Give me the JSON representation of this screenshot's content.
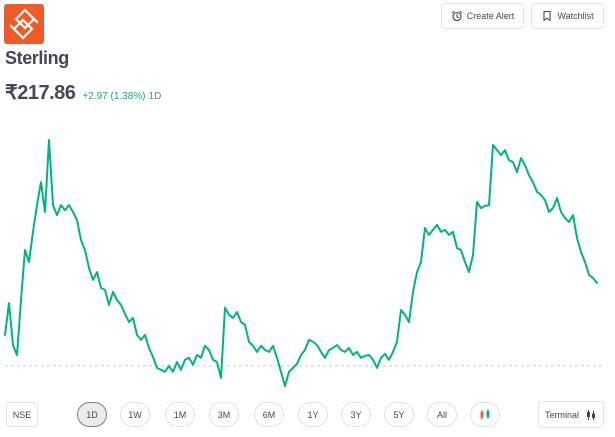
{
  "header": {
    "create_alert": {
      "label": "Create Alert",
      "icon": "alarm-clock-icon"
    },
    "watchlist": {
      "label": "Watchlist",
      "icon": "bookmark-icon"
    },
    "logo_icon": "company-logo-icon"
  },
  "stock": {
    "name": "Sterling",
    "price": "₹217.86",
    "change": "+2.97 (1.38%)",
    "period": "1D"
  },
  "footer": {
    "exchange": "NSE",
    "ranges": [
      {
        "label": "1D",
        "selected": true
      },
      {
        "label": "1W",
        "selected": false
      },
      {
        "label": "1M",
        "selected": false
      },
      {
        "label": "3M",
        "selected": false
      },
      {
        "label": "6M",
        "selected": false
      },
      {
        "label": "1Y",
        "selected": false
      },
      {
        "label": "3Y",
        "selected": false
      },
      {
        "label": "5Y",
        "selected": false
      },
      {
        "label": "All",
        "selected": false
      }
    ],
    "chart_type_icon": "candlestick-icon",
    "terminal": {
      "label": "Terminal",
      "icon": "candlestick-icon"
    }
  },
  "colors": {
    "logo": "#f05a28",
    "positive": "#00b386",
    "text": "#44475b",
    "muted": "#7c7e8c",
    "reference_line": "#c9c9c9",
    "selected_fill": "#ebebeb"
  },
  "chart_data": {
    "type": "line",
    "grid": false,
    "axes_visible": false,
    "legend": "none",
    "baseline": 214.89,
    "values": [
      216.0,
      217.14,
      215.64,
      215.28,
      217.25,
      219.04,
      218.61,
      219.69,
      220.65,
      221.47,
      220.4,
      222.98,
      220.65,
      220.29,
      220.65,
      220.47,
      220.65,
      220.4,
      220.11,
      219.4,
      219.04,
      218.4,
      217.97,
      218.25,
      217.68,
      217.61,
      217.07,
      217.54,
      217.25,
      217.07,
      216.75,
      216.46,
      216.61,
      216.0,
      215.82,
      216.0,
      215.53,
      215.21,
      214.82,
      214.75,
      214.68,
      214.89,
      214.68,
      215.03,
      214.75,
      215.11,
      215.18,
      214.93,
      215.28,
      215.18,
      215.61,
      215.46,
      215.11,
      215.03,
      214.46,
      216.97,
      216.72,
      216.61,
      216.82,
      216.46,
      216.36,
      215.75,
      215.61,
      215.39,
      215.61,
      215.46,
      215.39,
      215.61,
      215.18,
      214.68,
      214.17,
      214.68,
      214.82,
      214.96,
      215.28,
      215.46,
      215.82,
      215.75,
      215.64,
      215.39,
      215.18,
      215.46,
      215.53,
      215.64,
      215.46,
      215.39,
      215.53,
      215.28,
      215.39,
      215.18,
      215.25,
      215.28,
      215.11,
      214.82,
      215.18,
      215.32,
      215.11,
      215.39,
      215.75,
      216.89,
      216.72,
      216.46,
      217.54,
      218.25,
      218.61,
      219.83,
      219.58,
      219.76,
      219.94,
      219.69,
      219.76,
      219.58,
      219.69,
      219.11,
      219.04,
      218.61,
      218.25,
      218.86,
      220.76,
      220.54,
      220.62,
      220.65,
      222.8,
      222.62,
      222.44,
      222.62,
      222.26,
      222.19,
      221.83,
      222.33,
      222.08,
      221.72,
      221.47,
      221.12,
      221.01,
      220.83,
      220.4,
      220.54,
      220.9,
      220.4,
      220.19,
      220.04,
      220.29,
      219.47,
      218.97,
      218.61,
      218.15,
      218.04,
      217.86
    ]
  }
}
